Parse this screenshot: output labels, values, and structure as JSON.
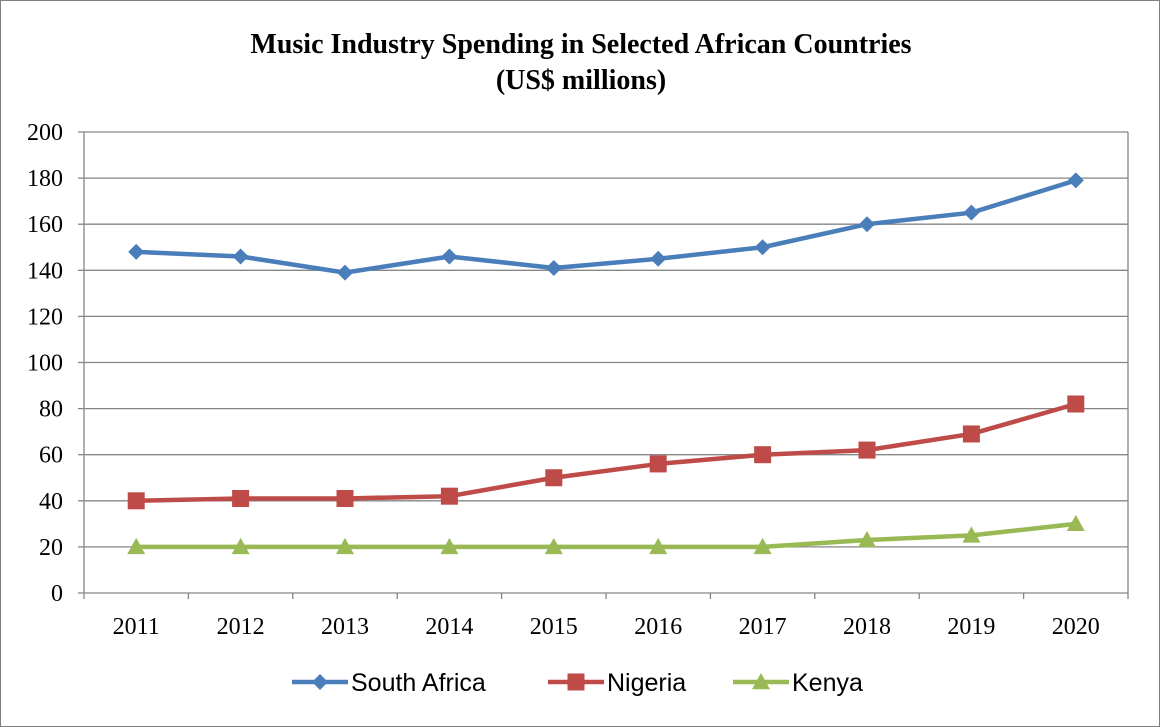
{
  "chart_data": {
    "type": "line",
    "title": "Music Industry Spending in Selected African Countries",
    "subtitle": "(US$ millions)",
    "xlabel": "",
    "ylabel": "",
    "x": [
      "2011",
      "2012",
      "2013",
      "2014",
      "2015",
      "2016",
      "2017",
      "2018",
      "2019",
      "2020"
    ],
    "ylim": [
      0,
      200
    ],
    "yticks": [
      0,
      20,
      40,
      60,
      80,
      100,
      120,
      140,
      160,
      180,
      200
    ],
    "grid": "horizontal",
    "legend_position": "bottom",
    "series": [
      {
        "name": "South Africa",
        "color": "#4a7ebb",
        "marker": "diamond",
        "values": [
          148,
          146,
          139,
          146,
          141,
          145,
          150,
          160,
          165,
          179
        ]
      },
      {
        "name": "Nigeria",
        "color": "#be4b48",
        "marker": "square",
        "values": [
          40,
          41,
          41,
          42,
          50,
          56,
          60,
          62,
          69,
          82
        ]
      },
      {
        "name": "Kenya",
        "color": "#98b954",
        "marker": "triangle",
        "values": [
          20,
          20,
          20,
          20,
          20,
          20,
          20,
          23,
          25,
          30
        ]
      }
    ]
  }
}
